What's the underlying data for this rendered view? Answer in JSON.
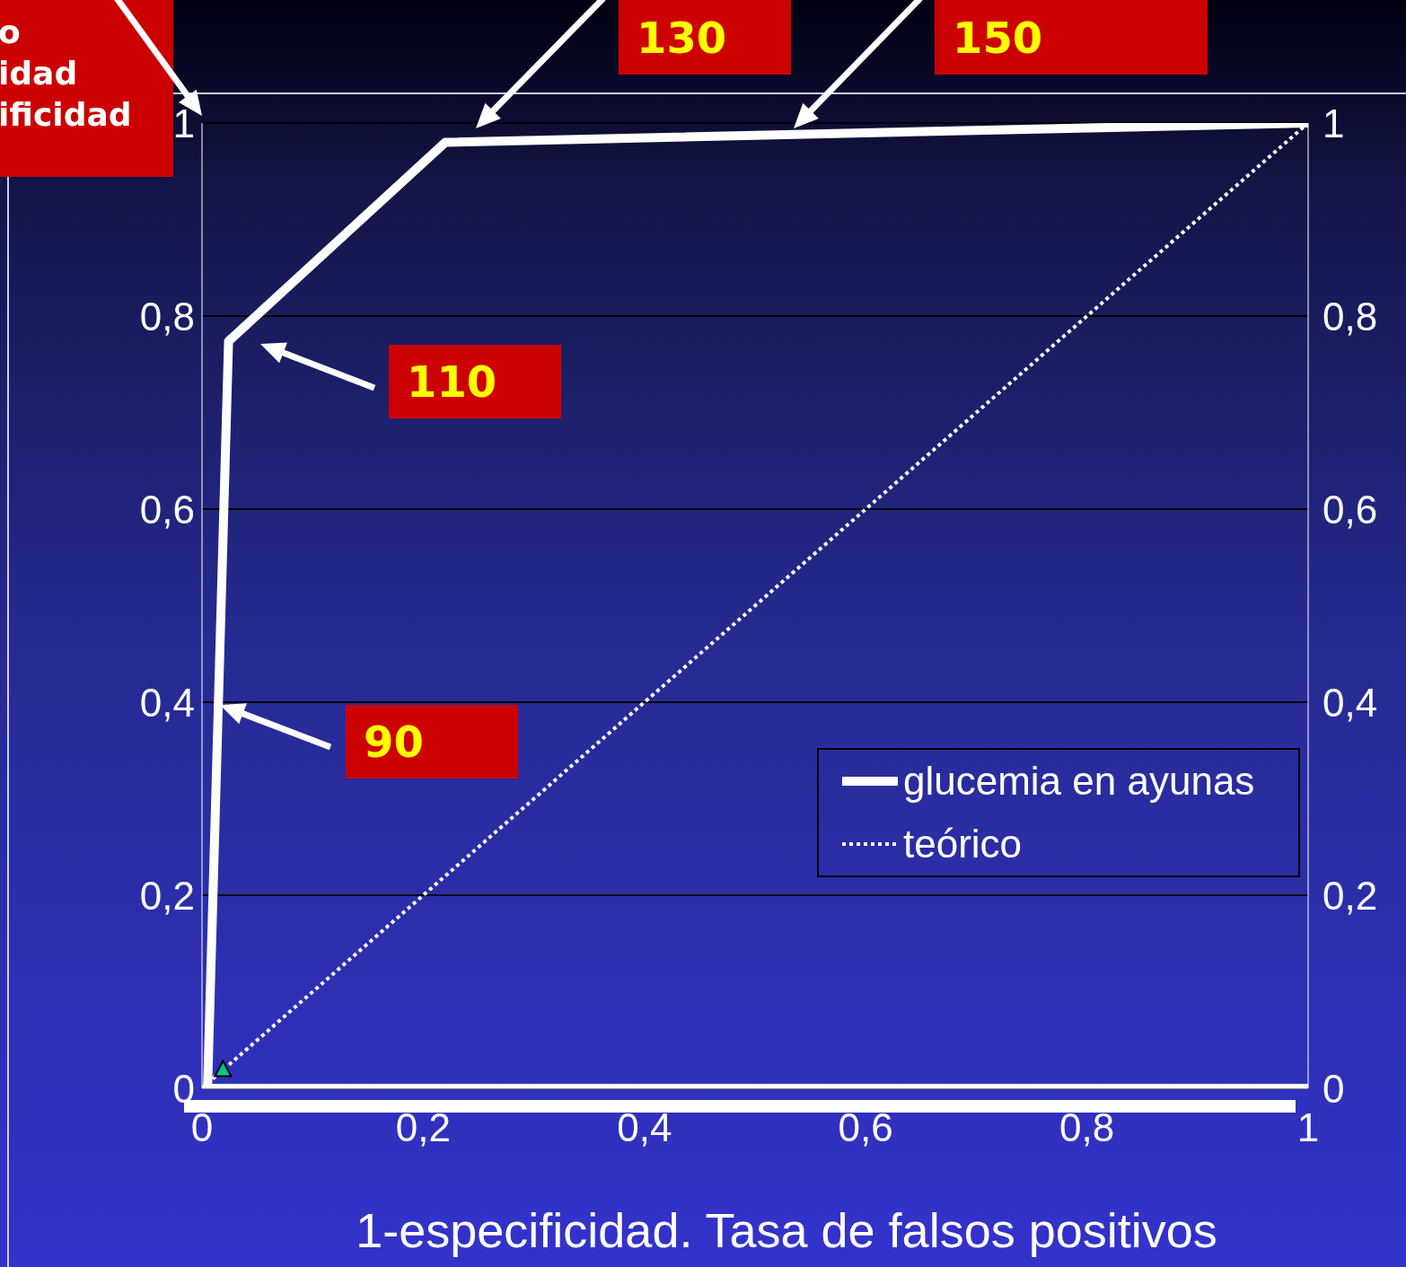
{
  "chart_data": {
    "type": "line",
    "xlabel": "1-especificidad. Tasa de falsos positivos",
    "xlim": [
      0,
      1
    ],
    "xticks": [
      0,
      {
        "value": 0.2,
        "label": "0,2"
      },
      {
        "value": 0.4,
        "label": "0,4"
      },
      {
        "value": 0.6,
        "label": "0,6"
      },
      {
        "value": 0.8,
        "label": "0,8"
      },
      1
    ],
    "ylim": [
      0,
      1
    ],
    "yticks": [
      0,
      {
        "value": 0.2,
        "label": "0,2"
      },
      {
        "value": 0.4,
        "label": "0,4"
      },
      {
        "value": 0.6,
        "label": "0,6"
      },
      {
        "value": 0.8,
        "label": "0,8"
      },
      1
    ],
    "y2lim": [
      0,
      1
    ],
    "y2ticks": [
      0,
      {
        "value": 0.2,
        "label": "0,2"
      },
      {
        "value": 0.4,
        "label": "0,4"
      },
      {
        "value": 0.6,
        "label": "0,6"
      },
      {
        "value": 0.8,
        "label": "0,8"
      },
      1
    ],
    "grid": "y",
    "legend": "bottom right",
    "series": [
      {
        "name": "glucemia en ayunas",
        "color": "#ffffff",
        "line_style": "solid",
        "marker": "none",
        "x": [
          1,
          0.005,
          0.024,
          0.22,
          1
        ],
        "values": [
          0,
          0,
          0.774,
          0.98,
          1
        ]
      },
      {
        "name": "teórico",
        "color": "#ffffff",
        "line_style": "dotted",
        "marker": "none",
        "x": [
          0,
          1
        ],
        "values": [
          0,
          1
        ]
      },
      {
        "type": "scatter",
        "color": "#00c88c",
        "marker": "triangle",
        "x": [
          0.019
        ],
        "values": [
          0.019
        ]
      }
    ],
    "annotations": [
      "90",
      "110",
      "130",
      "150",
      "o\nidad\nificidad"
    ]
  }
}
